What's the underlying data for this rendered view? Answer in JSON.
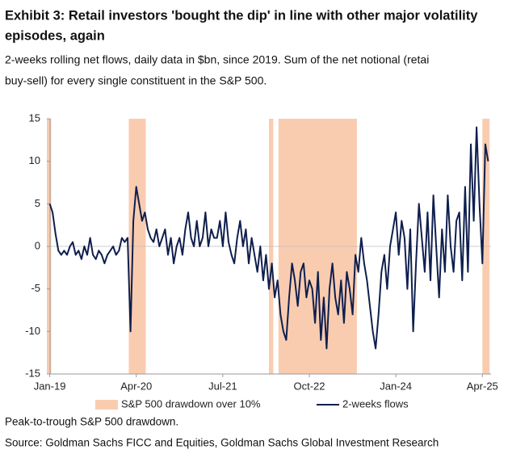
{
  "chart_data": {
    "type": "line",
    "title_lines": [
      "Exhibit 3: Retail investors 'bought the dip' in line with other major volatility",
      "episodes, again"
    ],
    "subtitle_lines": [
      "2-weeks rolling net flows, daily data in $bn, since 2019. Sum of the net notional (retai",
      "buy-sell) for every single constituent in the S&P 500."
    ],
    "series": [
      {
        "name": "2-weeks flows",
        "color": "#0f1f4d",
        "values": [
          5,
          4,
          1.5,
          -0.5,
          -1,
          -0.5,
          -1,
          0,
          0.5,
          -1,
          -0.5,
          -1.5,
          0,
          -1,
          1,
          -1,
          -1.5,
          -0.5,
          -1,
          -2,
          -1,
          -0.5,
          0,
          -1,
          -0.5,
          1,
          0.5,
          1,
          -10,
          3,
          7,
          5,
          3,
          4,
          2,
          1,
          0.5,
          2,
          0,
          1,
          2,
          -1,
          1,
          -2,
          0,
          1,
          -1,
          2,
          4,
          1,
          0,
          3,
          0,
          1,
          4,
          0,
          2,
          1,
          1,
          3,
          0,
          4,
          0.5,
          -1,
          -2,
          1,
          3,
          0,
          2,
          -2,
          1,
          -1,
          -3,
          0,
          -4,
          -1,
          -5,
          -2,
          -6,
          -4,
          -8,
          -10,
          -11,
          -6,
          -2,
          -4,
          -7,
          -3,
          -2,
          -6,
          -4,
          -5,
          -9,
          -3,
          -11,
          -6,
          -12,
          -5,
          -2,
          -6,
          -8,
          -4,
          -9,
          -3,
          -5,
          -8,
          -1,
          -3,
          1,
          -2,
          -4,
          -7,
          -10,
          -12,
          -8,
          -3,
          -1,
          -5,
          0,
          2,
          4,
          -1,
          3,
          1,
          -5,
          2,
          -10,
          -2,
          5,
          1,
          -3,
          4,
          -4,
          6,
          0,
          -6,
          2,
          -3,
          6,
          0,
          -3,
          3,
          4,
          -4,
          7,
          -3,
          12,
          3,
          14,
          5,
          -2,
          12,
          10
        ]
      }
    ],
    "shaded": {
      "name": "S&P 500 drawdown over 10%",
      "color": "#f9ccb0",
      "spans": [
        [
          -1,
          0.5
        ],
        [
          27.4,
          33.3
        ],
        [
          76,
          77.5
        ],
        [
          79.3,
          106.5
        ],
        [
          150,
          152.5
        ]
      ]
    },
    "xlim": [
      -1,
      153
    ],
    "xticks": [
      {
        "value": 0,
        "label": "Jan-19"
      },
      {
        "value": 30,
        "label": "Apr-20"
      },
      {
        "value": 60,
        "label": "Jul-21"
      },
      {
        "value": 90,
        "label": "Oct-22"
      },
      {
        "value": 120,
        "label": "Jan-24"
      },
      {
        "value": 150,
        "label": "Apr-25"
      }
    ],
    "ylim": [
      -15,
      15
    ],
    "yticks": [
      -15,
      -10,
      -5,
      0,
      5,
      10,
      15
    ],
    "footnotes": [
      "Peak-to-trough S&P 500 drawdown.",
      "Source: Goldman Sachs FICC and Equities, Goldman Sachs Global Investment Research"
    ]
  }
}
